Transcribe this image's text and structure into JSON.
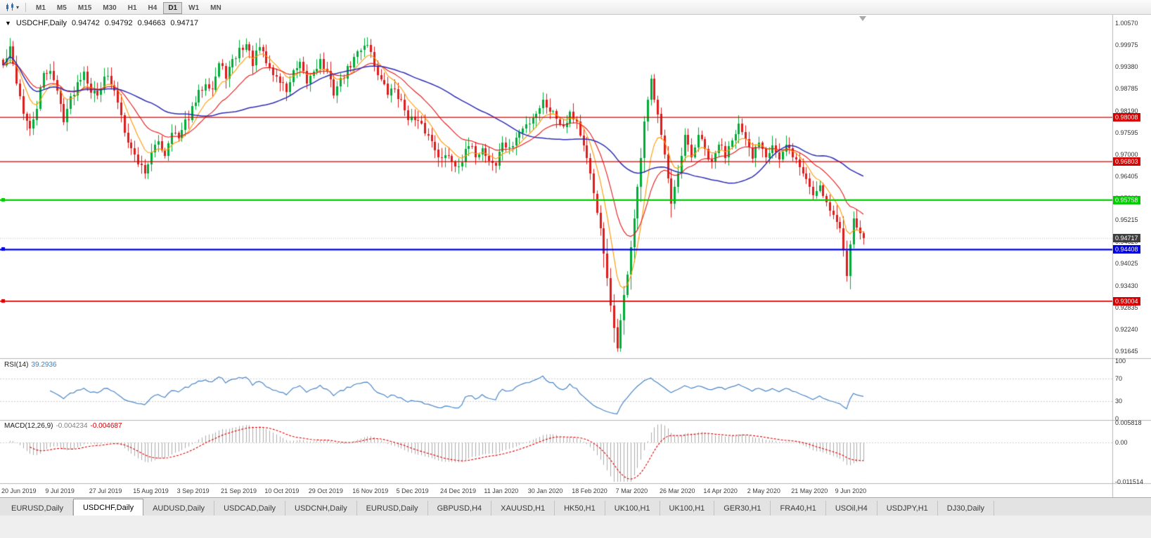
{
  "toolbar": {
    "timeframes": [
      "M1",
      "M5",
      "M15",
      "M30",
      "H1",
      "H4",
      "D1",
      "W1",
      "MN"
    ],
    "active_timeframe": "D1"
  },
  "chart": {
    "title_symbol": "USDCHF,Daily",
    "ohlc": {
      "open": "0.94742",
      "high": "0.94792",
      "low": "0.94663",
      "close": "0.94717"
    }
  },
  "indicators": {
    "rsi": {
      "label": "RSI(14)",
      "value": "39.2936",
      "axis_ticks": [
        "100",
        "70",
        "30",
        "0"
      ],
      "level_lines": [
        70,
        30
      ]
    },
    "macd": {
      "label": "MACD(12,26,9)",
      "main_value": "-0.004234",
      "signal_value": "-0.004687",
      "axis_ticks": [
        "0.005818",
        "0.00",
        "-0.011514"
      ]
    }
  },
  "tabs": [
    {
      "label": "EURUSD,Daily",
      "active": false
    },
    {
      "label": "USDCHF,Daily",
      "active": true
    },
    {
      "label": "AUDUSD,Daily",
      "active": false
    },
    {
      "label": "USDCAD,Daily",
      "active": false
    },
    {
      "label": "USDCNH,Daily",
      "active": false
    },
    {
      "label": "EURUSD,Daily",
      "active": false
    },
    {
      "label": "GBPUSD,H4",
      "active": false
    },
    {
      "label": "XAUUSD,H1",
      "active": false
    },
    {
      "label": "HK50,H1",
      "active": false
    },
    {
      "label": "UK100,H1",
      "active": false
    },
    {
      "label": "UK100,H1",
      "active": false
    },
    {
      "label": "GER30,H1",
      "active": false
    },
    {
      "label": "FRA40,H1",
      "active": false
    },
    {
      "label": "USOil,H4",
      "active": false
    },
    {
      "label": "USDJPY,H1",
      "active": false
    },
    {
      "label": "DJ30,Daily",
      "active": false
    }
  ],
  "chart_data": {
    "type": "candlestick",
    "symbol": "USDCHF",
    "timeframe": "Daily",
    "x_labels": [
      "20 Jun 2019",
      "9 Jul 2019",
      "27 Jul 2019",
      "15 Aug 2019",
      "3 Sep 2019",
      "21 Sep 2019",
      "10 Oct 2019",
      "29 Oct 2019",
      "16 Nov 2019",
      "5 Dec 2019",
      "24 Dec 2019",
      "11 Jan 2020",
      "30 Jan 2020",
      "18 Feb 2020",
      "7 Mar 2020",
      "26 Mar 2020",
      "14 Apr 2020",
      "2 May 2020",
      "21 May 2020",
      "9 Jun 2020"
    ],
    "candles_per_label": 13,
    "candle_count": 256,
    "price_anchors": [
      [
        0,
        0.994
      ],
      [
        2,
        0.9985
      ],
      [
        4,
        0.99
      ],
      [
        6,
        0.9815
      ],
      [
        8,
        0.976
      ],
      [
        10,
        0.983
      ],
      [
        12,
        0.9915
      ],
      [
        14,
        0.9935
      ],
      [
        16,
        0.987
      ],
      [
        18,
        0.98
      ],
      [
        20,
        0.985
      ],
      [
        22,
        0.9895
      ],
      [
        24,
        0.993
      ],
      [
        26,
        0.9875
      ],
      [
        28,
        0.986
      ],
      [
        30,
        0.992
      ],
      [
        32,
        0.989
      ],
      [
        34,
        0.9845
      ],
      [
        36,
        0.977
      ],
      [
        38,
        0.9715
      ],
      [
        40,
        0.968
      ],
      [
        42,
        0.9655
      ],
      [
        44,
        0.97
      ],
      [
        46,
        0.9735
      ],
      [
        48,
        0.97
      ],
      [
        50,
        0.977
      ],
      [
        52,
        0.974
      ],
      [
        54,
        0.9785
      ],
      [
        56,
        0.982
      ],
      [
        58,
        0.9865
      ],
      [
        60,
        0.99
      ],
      [
        62,
        0.988
      ],
      [
        64,
        0.9945
      ],
      [
        66,
        0.9915
      ],
      [
        68,
        0.995
      ],
      [
        70,
        0.9985
      ],
      [
        72,
        1.0
      ],
      [
        74,
        0.995
      ],
      [
        76,
        0.999
      ],
      [
        78,
        0.995
      ],
      [
        80,
        0.992
      ],
      [
        82,
        0.99
      ],
      [
        84,
        0.9875
      ],
      [
        86,
        0.992
      ],
      [
        88,
        0.994
      ],
      [
        90,
        0.9895
      ],
      [
        92,
        0.993
      ],
      [
        94,
        0.9955
      ],
      [
        96,
        0.992
      ],
      [
        98,
        0.987
      ],
      [
        100,
        0.99
      ],
      [
        102,
        0.993
      ],
      [
        104,
        0.996
      ],
      [
        106,
        0.999
      ],
      [
        108,
        1.0005
      ],
      [
        110,
        0.9945
      ],
      [
        112,
        0.99
      ],
      [
        114,
        0.9865
      ],
      [
        116,
        0.988
      ],
      [
        118,
        0.984
      ],
      [
        120,
        0.9805
      ],
      [
        122,
        0.979
      ],
      [
        124,
        0.9775
      ],
      [
        126,
        0.975
      ],
      [
        128,
        0.972
      ],
      [
        130,
        0.9685
      ],
      [
        132,
        0.97
      ],
      [
        134,
        0.967
      ],
      [
        136,
        0.9685
      ],
      [
        138,
        0.972
      ],
      [
        140,
        0.97
      ],
      [
        142,
        0.9715
      ],
      [
        144,
        0.9685
      ],
      [
        146,
        0.967
      ],
      [
        148,
        0.9735
      ],
      [
        150,
        0.971
      ],
      [
        152,
        0.9745
      ],
      [
        154,
        0.977
      ],
      [
        156,
        0.979
      ],
      [
        158,
        0.9815
      ],
      [
        160,
        0.9845
      ],
      [
        162,
        0.9825
      ],
      [
        164,
        0.98
      ],
      [
        166,
        0.978
      ],
      [
        168,
        0.9815
      ],
      [
        170,
        0.979
      ],
      [
        172,
        0.972
      ],
      [
        174,
        0.964
      ],
      [
        176,
        0.955
      ],
      [
        178,
        0.943
      ],
      [
        180,
        0.928
      ],
      [
        182,
        0.918
      ],
      [
        184,
        0.931
      ],
      [
        186,
        0.945
      ],
      [
        188,
        0.96
      ],
      [
        190,
        0.978
      ],
      [
        192,
        0.99
      ],
      [
        194,
        0.982
      ],
      [
        196,
        0.97
      ],
      [
        198,
        0.956
      ],
      [
        200,
        0.964
      ],
      [
        202,
        0.9745
      ],
      [
        204,
        0.969
      ],
      [
        206,
        0.9755
      ],
      [
        208,
        0.971
      ],
      [
        210,
        0.967
      ],
      [
        212,
        0.973
      ],
      [
        214,
        0.97
      ],
      [
        216,
        0.975
      ],
      [
        218,
        0.978
      ],
      [
        220,
        0.973
      ],
      [
        222,
        0.969
      ],
      [
        224,
        0.974
      ],
      [
        226,
        0.97
      ],
      [
        228,
        0.973
      ],
      [
        230,
        0.9685
      ],
      [
        232,
        0.972
      ],
      [
        234,
        0.97
      ],
      [
        236,
        0.9665
      ],
      [
        238,
        0.9635
      ],
      [
        240,
        0.959
      ],
      [
        242,
        0.962
      ],
      [
        244,
        0.957
      ],
      [
        246,
        0.9535
      ],
      [
        248,
        0.9495
      ],
      [
        249,
        0.944
      ],
      [
        250,
        0.9378
      ],
      [
        251,
        0.9455
      ],
      [
        252,
        0.9525
      ],
      [
        253,
        0.95
      ],
      [
        254,
        0.9485
      ],
      [
        255,
        0.9472
      ]
    ],
    "y_axis_ticks": [
      1.0057,
      0.99975,
      0.9938,
      0.98785,
      0.9819,
      0.97595,
      0.97,
      0.96405,
      0.9581,
      0.95215,
      0.9462,
      0.94025,
      0.9343,
      0.92835,
      0.9224,
      0.91645
    ],
    "price_scale": {
      "top": 1.0057,
      "bottom": 0.91645
    },
    "levels": [
      {
        "price": 0.98008,
        "label": "0.98008",
        "color": "#d60000",
        "width": 1.2,
        "handle": false
      },
      {
        "price": 0.96803,
        "label": "0.96803",
        "color": "#d60000",
        "width": 1.2,
        "handle": false
      },
      {
        "price": 0.95758,
        "label": "0.95758",
        "color": "#00cc00",
        "width": 2.2,
        "handle": true
      },
      {
        "price": 0.94408,
        "label": "0.94408",
        "color": "#0000dd",
        "width": 2.2,
        "handle": true
      },
      {
        "price": 0.93004,
        "label": "0.93004",
        "color": "#d60000",
        "width": 1.8,
        "handle": true
      }
    ],
    "current_price": {
      "value": 0.94717,
      "label": "0.94717",
      "bg": "#3f3f3f"
    },
    "colors": {
      "up": "#00ac38",
      "down": "#dd1c1c",
      "ma_fast": "#ff9900",
      "ma_mid": "#e81717",
      "ma_slow": "#2d2db4",
      "rsi_line": "#4a86c8",
      "macd_histogram": "#ababab",
      "macd_signal": "#e00000"
    },
    "rsi_scale": {
      "max": 100,
      "min": 0
    },
    "macd_scale": {
      "max": 0.005818,
      "min": -0.011514
    }
  }
}
